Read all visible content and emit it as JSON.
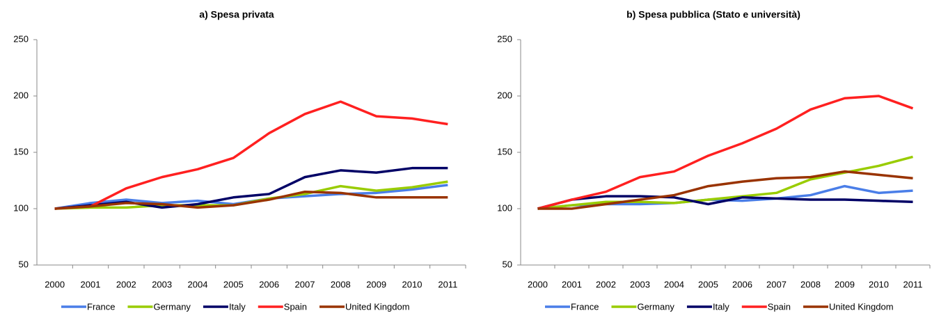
{
  "chart_data": [
    {
      "type": "line",
      "title": "a) Spesa privata",
      "categories": [
        "2000",
        "2001",
        "2002",
        "2003",
        "2004",
        "2005",
        "2006",
        "2007",
        "2008",
        "2009",
        "2010",
        "2011"
      ],
      "ylim": [
        50,
        250
      ],
      "yticks": [
        50,
        100,
        150,
        200,
        250
      ],
      "grid": false,
      "legend": "bottom",
      "series": [
        {
          "name": "France",
          "color": "#4a7ee8",
          "values": [
            100,
            105,
            108,
            105,
            107,
            104,
            109,
            111,
            113,
            114,
            117,
            121
          ]
        },
        {
          "name": "Germany",
          "color": "#99cc00",
          "values": [
            100,
            101,
            101,
            103,
            103,
            103,
            109,
            113,
            120,
            116,
            119,
            124
          ]
        },
        {
          "name": "Italy",
          "color": "#000066",
          "values": [
            100,
            103,
            106,
            101,
            104,
            110,
            113,
            128,
            134,
            132,
            136,
            136
          ]
        },
        {
          "name": "Spain",
          "color": "#ff2020",
          "values": [
            100,
            102,
            118,
            128,
            135,
            145,
            167,
            184,
            195,
            182,
            180,
            175
          ]
        },
        {
          "name": "United Kingdom",
          "color": "#993300",
          "values": [
            100,
            102,
            105,
            104,
            101,
            103,
            108,
            115,
            114,
            110,
            110,
            110
          ]
        }
      ]
    },
    {
      "type": "line",
      "title": "b) Spesa pubblica (Stato e università)",
      "categories": [
        "2000",
        "2001",
        "2002",
        "2003",
        "2004",
        "2005",
        "2006",
        "2007",
        "2008",
        "2009",
        "2010",
        "2011"
      ],
      "ylim": [
        50,
        250
      ],
      "yticks": [
        50,
        100,
        150,
        200,
        250
      ],
      "grid": false,
      "legend": "bottom",
      "series": [
        {
          "name": "France",
          "color": "#4a7ee8",
          "values": [
            100,
            103,
            104,
            104,
            105,
            108,
            107,
            109,
            112,
            120,
            114,
            116
          ]
        },
        {
          "name": "Germany",
          "color": "#99cc00",
          "values": [
            100,
            103,
            106,
            106,
            105,
            108,
            111,
            114,
            126,
            132,
            138,
            146
          ]
        },
        {
          "name": "Italy",
          "color": "#000066",
          "values": [
            100,
            108,
            111,
            111,
            110,
            104,
            110,
            109,
            108,
            108,
            107,
            106
          ]
        },
        {
          "name": "Spain",
          "color": "#ff2020",
          "values": [
            100,
            108,
            115,
            128,
            133,
            147,
            158,
            171,
            188,
            198,
            200,
            189
          ]
        },
        {
          "name": "United Kingdom",
          "color": "#993300",
          "values": [
            100,
            100,
            104,
            108,
            112,
            120,
            124,
            127,
            128,
            133,
            130,
            127
          ]
        }
      ]
    }
  ]
}
